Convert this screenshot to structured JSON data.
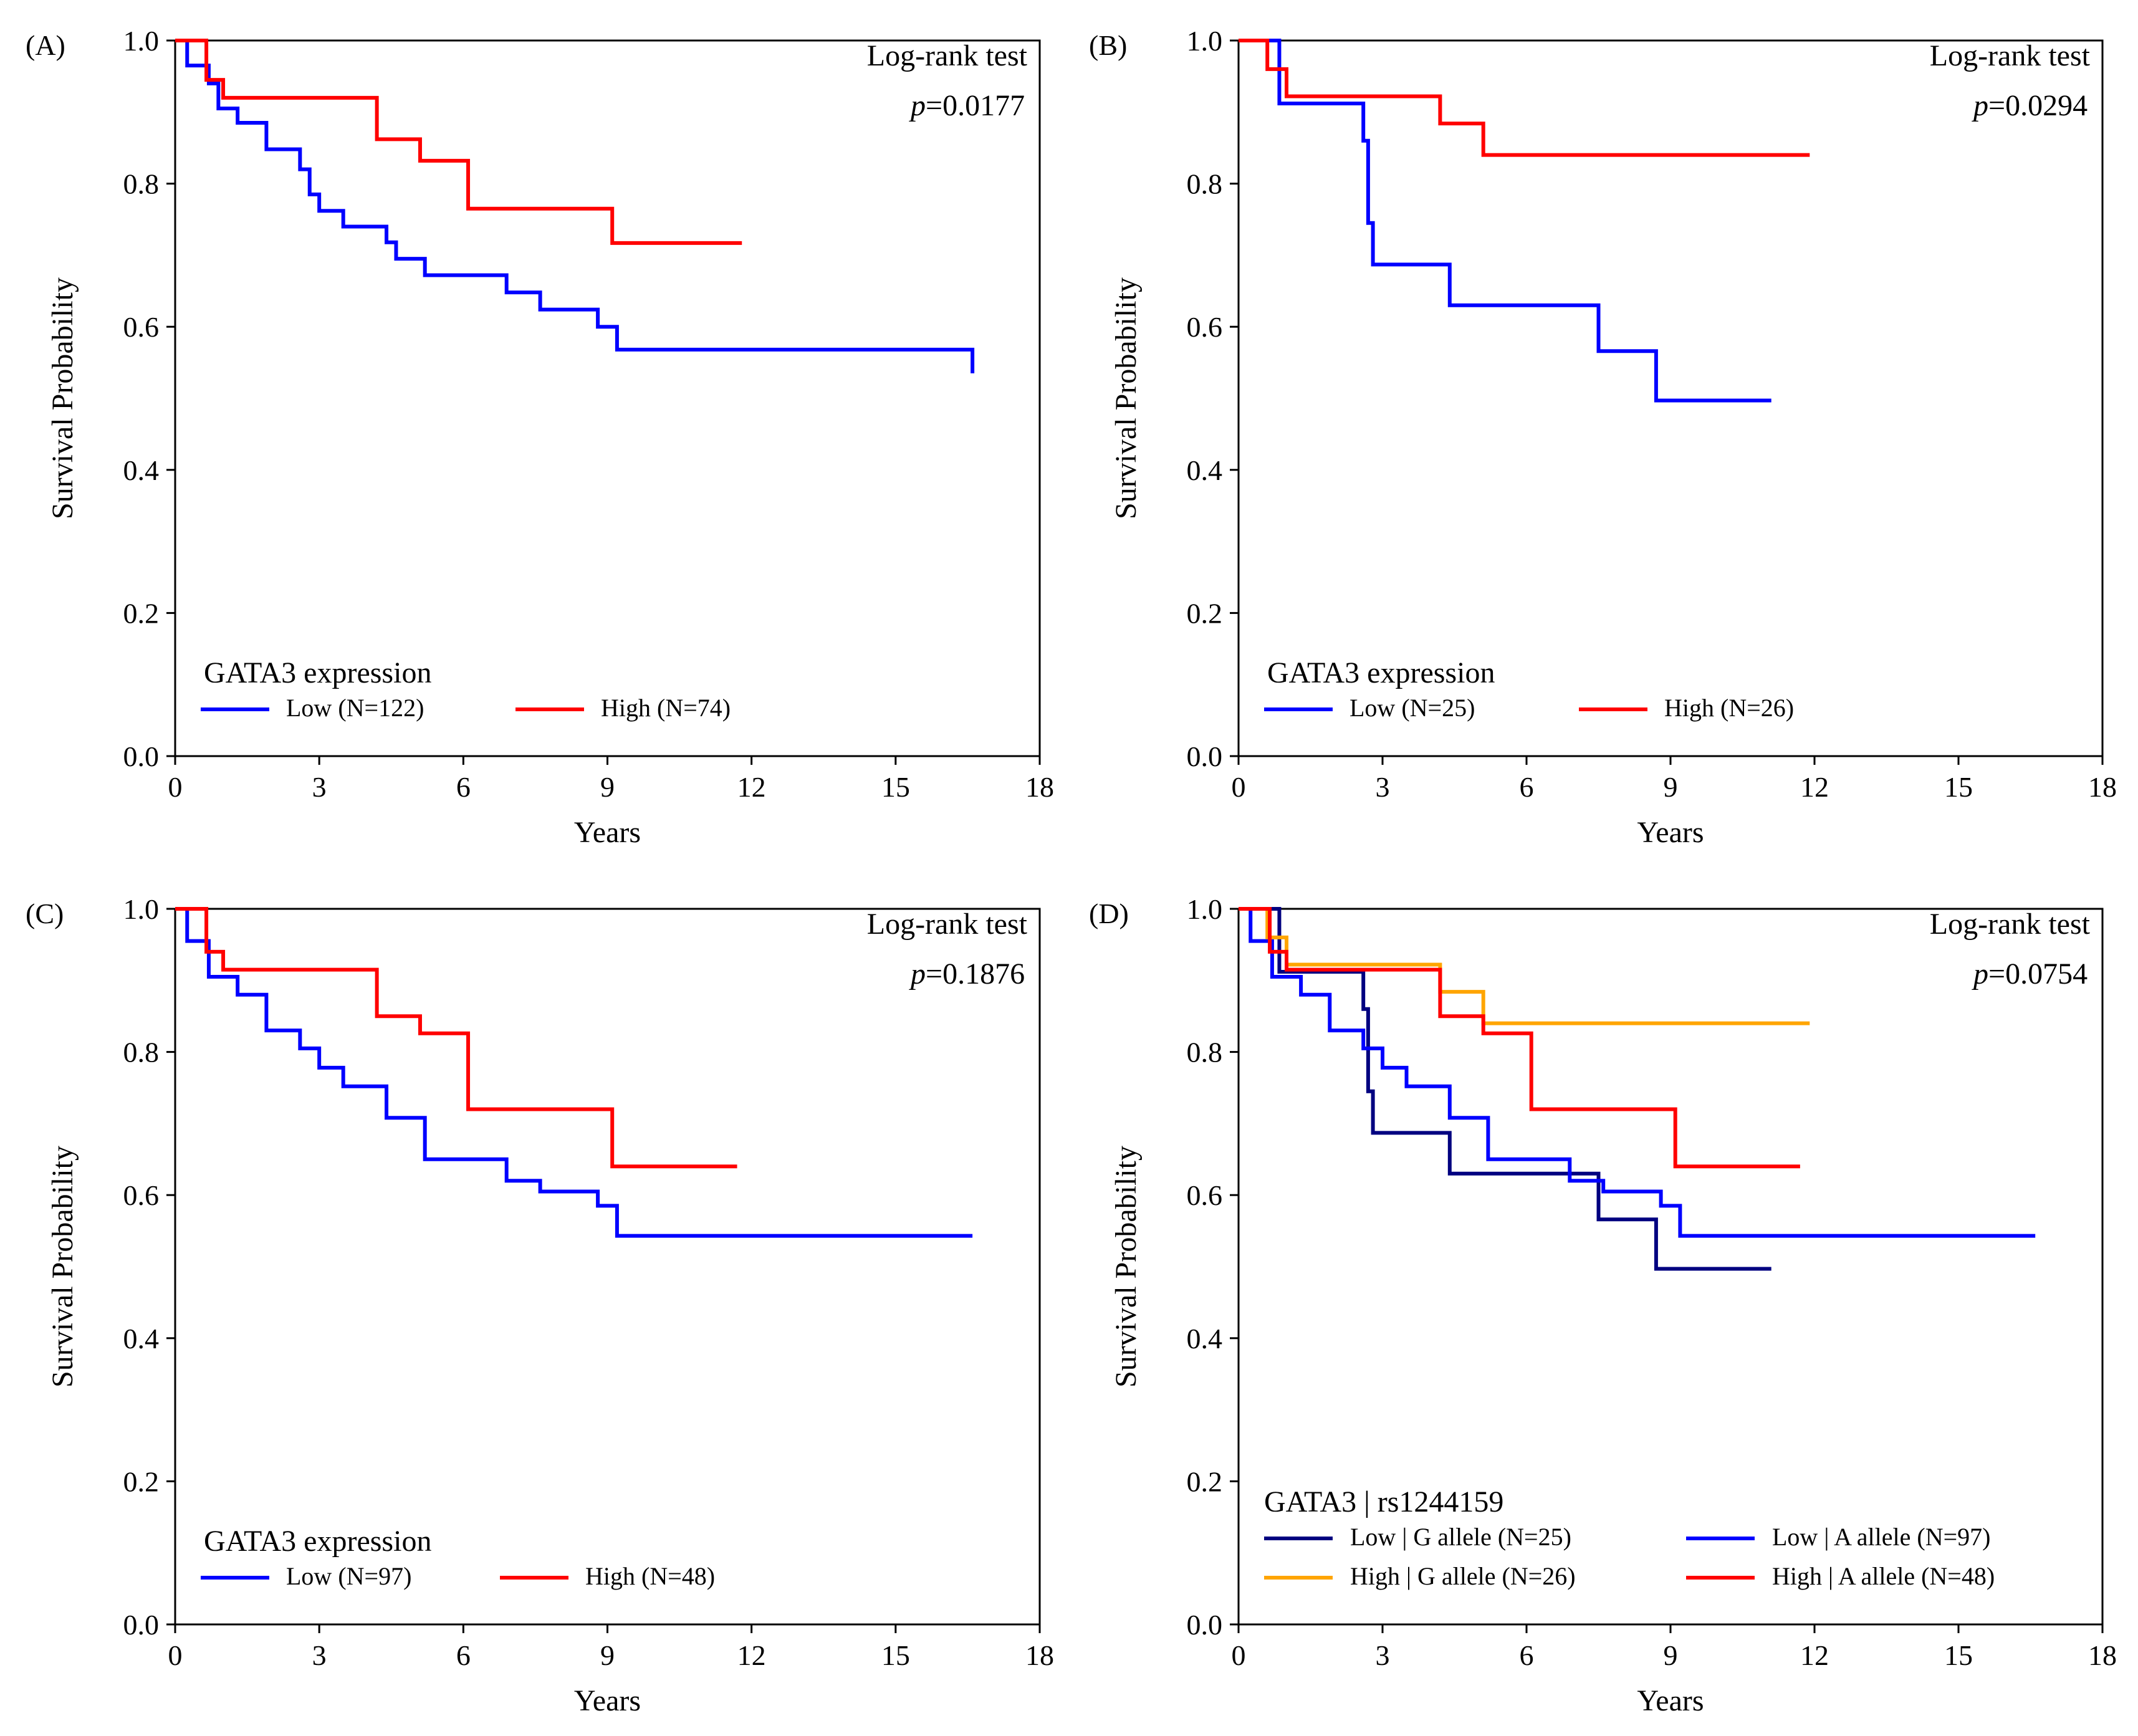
{
  "chart_data": [
    {
      "panel_label": "(A)",
      "type": "line",
      "subtype": "kaplan-meier",
      "xlabel": "Years",
      "ylabel": "Survival Probability",
      "xlim": [
        0,
        18
      ],
      "ylim": [
        0,
        1
      ],
      "xticks": [
        0,
        3,
        6,
        9,
        12,
        15,
        18
      ],
      "yticks": [
        0.0,
        0.2,
        0.4,
        0.6,
        0.8,
        1.0
      ],
      "annotation": {
        "test": "Log-rank test",
        "p_symbol": "p",
        "p_value": "=0.0177"
      },
      "legend": {
        "title": "GATA3 expression",
        "columns": 2,
        "placement": "lower-left"
      },
      "series": [
        {
          "name": "Low (N=122)",
          "color": "#0000ff",
          "x": [
            0,
            0.25,
            0.7,
            0.9,
            1.3,
            1.9,
            2.6,
            2.8,
            3.0,
            3.5,
            4.4,
            4.6,
            5.2,
            6.9,
            7.6,
            8.8,
            9.2,
            16.6
          ],
          "y": [
            1.0,
            0.965,
            0.94,
            0.905,
            0.885,
            0.848,
            0.82,
            0.785,
            0.762,
            0.74,
            0.718,
            0.695,
            0.672,
            0.648,
            0.624,
            0.6,
            0.568,
            0.535
          ]
        },
        {
          "name": "High (N=74)",
          "color": "#ff0000",
          "x": [
            0,
            0.65,
            1.0,
            4.2,
            5.1,
            6.1,
            9.1,
            11.8
          ],
          "y": [
            1.0,
            0.945,
            0.92,
            0.862,
            0.832,
            0.765,
            0.717,
            0.717
          ]
        }
      ]
    },
    {
      "panel_label": "(B)",
      "type": "line",
      "subtype": "kaplan-meier",
      "xlabel": "Years",
      "ylabel": "Survival Probability",
      "xlim": [
        0,
        18
      ],
      "ylim": [
        0,
        1
      ],
      "xticks": [
        0,
        3,
        6,
        9,
        12,
        15,
        18
      ],
      "yticks": [
        0.0,
        0.2,
        0.4,
        0.6,
        0.8,
        1.0
      ],
      "annotation": {
        "test": "Log-rank test",
        "p_symbol": "p",
        "p_value": "=0.0294"
      },
      "legend": {
        "title": "GATA3 expression",
        "columns": 2,
        "placement": "lower-left"
      },
      "series": [
        {
          "name": "Low (N=25)",
          "color": "#0000ff",
          "x": [
            0,
            0.85,
            2.6,
            2.7,
            2.8,
            4.4,
            7.5,
            8.7,
            11.1
          ],
          "y": [
            1.0,
            0.912,
            0.86,
            0.745,
            0.687,
            0.63,
            0.566,
            0.497,
            0.497
          ]
        },
        {
          "name": "High (N=26)",
          "color": "#ff0000",
          "x": [
            0,
            0.6,
            1.0,
            4.2,
            5.1,
            11.9
          ],
          "y": [
            1.0,
            0.96,
            0.922,
            0.884,
            0.84,
            0.84
          ]
        }
      ]
    },
    {
      "panel_label": "(C)",
      "type": "line",
      "subtype": "kaplan-meier",
      "xlabel": "Years",
      "ylabel": "Survival Probability",
      "xlim": [
        0,
        18
      ],
      "ylim": [
        0,
        1
      ],
      "xticks": [
        0,
        3,
        6,
        9,
        12,
        15,
        18
      ],
      "yticks": [
        0.0,
        0.2,
        0.4,
        0.6,
        0.8,
        1.0
      ],
      "annotation": {
        "test": "Log-rank test",
        "p_symbol": "p",
        "p_value": "=0.1876"
      },
      "legend": {
        "title": "GATA3 expression",
        "columns": 2,
        "placement": "lower-left"
      },
      "series": [
        {
          "name": "Low (N=97)",
          "color": "#0000ff",
          "x": [
            0,
            0.25,
            0.7,
            1.3,
            1.9,
            2.6,
            3.0,
            3.5,
            4.4,
            5.2,
            6.9,
            7.6,
            8.8,
            9.2,
            16.6
          ],
          "y": [
            1.0,
            0.955,
            0.905,
            0.88,
            0.83,
            0.805,
            0.778,
            0.752,
            0.708,
            0.65,
            0.62,
            0.605,
            0.585,
            0.543,
            0.543
          ]
        },
        {
          "name": "High (N=48)",
          "color": "#ff0000",
          "x": [
            0,
            0.65,
            1.0,
            4.2,
            5.1,
            6.1,
            9.1,
            11.7
          ],
          "y": [
            1.0,
            0.94,
            0.915,
            0.85,
            0.826,
            0.72,
            0.64,
            0.64
          ]
        }
      ]
    },
    {
      "panel_label": "(D)",
      "type": "line",
      "subtype": "kaplan-meier",
      "xlabel": "Years",
      "ylabel": "Survival Probability",
      "xlim": [
        0,
        18
      ],
      "ylim": [
        0,
        1
      ],
      "xticks": [
        0,
        3,
        6,
        9,
        12,
        15,
        18
      ],
      "yticks": [
        0.0,
        0.2,
        0.4,
        0.6,
        0.8,
        1.0
      ],
      "annotation": {
        "test": "Log-rank test",
        "p_symbol": "p",
        "p_value": "=0.0754"
      },
      "legend": {
        "title": "GATA3 | rs1244159",
        "columns": 2,
        "placement": "lower-left"
      },
      "series": [
        {
          "name": "Low | G allele (N=25)",
          "color": "#000080",
          "x": [
            0,
            0.85,
            2.6,
            2.7,
            2.8,
            4.4,
            7.5,
            8.7,
            11.1
          ],
          "y": [
            1.0,
            0.912,
            0.86,
            0.745,
            0.687,
            0.63,
            0.566,
            0.497,
            0.497
          ]
        },
        {
          "name": "Low | A allele (N=97)",
          "color": "#0000ff",
          "x": [
            0,
            0.25,
            0.7,
            1.3,
            1.9,
            2.6,
            3.0,
            3.5,
            4.4,
            5.2,
            6.9,
            7.6,
            8.8,
            9.2,
            16.6
          ],
          "y": [
            1.0,
            0.955,
            0.905,
            0.88,
            0.83,
            0.805,
            0.778,
            0.752,
            0.708,
            0.65,
            0.62,
            0.605,
            0.585,
            0.543,
            0.543
          ]
        },
        {
          "name": "High | G allele (N=26)",
          "color": "#ffa500",
          "x": [
            0,
            0.6,
            1.0,
            4.2,
            5.1,
            11.9
          ],
          "y": [
            1.0,
            0.96,
            0.922,
            0.884,
            0.84,
            0.84
          ]
        },
        {
          "name": "High | A allele (N=48)",
          "color": "#ff0000",
          "x": [
            0,
            0.65,
            1.0,
            4.2,
            5.1,
            6.1,
            9.1,
            11.7
          ],
          "y": [
            1.0,
            0.94,
            0.915,
            0.85,
            0.826,
            0.72,
            0.64,
            0.64
          ]
        }
      ]
    }
  ]
}
